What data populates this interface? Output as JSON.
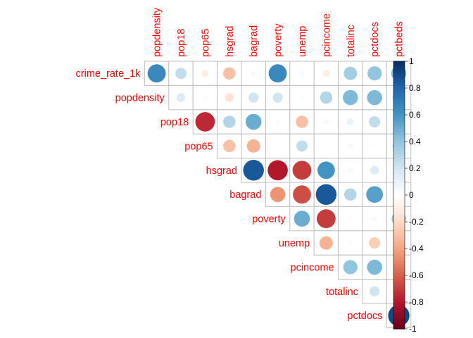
{
  "chart_data": {
    "type": "heatmap",
    "variables": [
      "crime_rate_1k",
      "popdensity",
      "pop18",
      "pop65",
      "hsgrad",
      "bagrad",
      "poverty",
      "unemp",
      "pcincome",
      "totalinc",
      "pctdocs",
      "pctbeds"
    ],
    "row_labels": [
      "crime_rate_1k",
      "popdensity",
      "pop18",
      "pop65",
      "hsgrad",
      "bagrad",
      "poverty",
      "unemp",
      "pcincome",
      "totalinc",
      "pctdocs"
    ],
    "col_labels": [
      "popdensity",
      "pop18",
      "pop65",
      "hsgrad",
      "bagrad",
      "poverty",
      "unemp",
      "pcincome",
      "totalinc",
      "pctdocs",
      "pctbeds"
    ],
    "matrix_shape": "upper-triangle",
    "glyph": "circle",
    "correlations": [
      {
        "row": "crime_rate_1k",
        "values": {
          "popdensity": 0.65,
          "pop18": 0.25,
          "pop65": -0.1,
          "hsgrad": -0.3,
          "bagrad": 0.05,
          "poverty": 0.65,
          "unemp": 0.05,
          "pcincome": -0.1,
          "totalinc": 0.35,
          "pctdocs": 0.4,
          "pctbeds": 0.45
        }
      },
      {
        "row": "popdensity",
        "values": {
          "pop18": 0.15,
          "pop65": -0.03,
          "hsgrad": -0.15,
          "bagrad": 0.2,
          "poverty": 0.2,
          "unemp": 0.03,
          "pcincome": 0.3,
          "totalinc": 0.45,
          "pctdocs": 0.45,
          "pctbeds": 0.3
        }
      },
      {
        "row": "pop18",
        "values": {
          "pop65": -0.75,
          "hsgrad": 0.3,
          "bagrad": 0.5,
          "poverty": 0.03,
          "unemp": -0.3,
          "pcincome": 0.05,
          "totalinc": 0.1,
          "pctdocs": 0.25,
          "pctbeds": 0.03
        }
      },
      {
        "row": "pop65",
        "values": {
          "hsgrad": -0.3,
          "bagrad": -0.35,
          "poverty": 0.0,
          "unemp": 0.25,
          "pcincome": 0.0,
          "totalinc": 0.05,
          "pctdocs": 0.02,
          "pctbeds": 0.3
        }
      },
      {
        "row": "hsgrad",
        "values": {
          "bagrad": 0.85,
          "poverty": -0.8,
          "unemp": -0.7,
          "pcincome": 0.6,
          "totalinc": 0.05,
          "pctdocs": 0.15,
          "pctbeds": -0.2
        }
      },
      {
        "row": "bagrad",
        "values": {
          "poverty": -0.45,
          "unemp": -0.65,
          "pcincome": 0.85,
          "totalinc": 0.3,
          "pctdocs": 0.55,
          "pctbeds": -0.05
        }
      },
      {
        "row": "poverty",
        "values": {
          "unemp": 0.5,
          "pcincome": -0.7,
          "totalinc": 0.03,
          "pctdocs": 0.05,
          "pctbeds": 0.4
        }
      },
      {
        "row": "unemp",
        "values": {
          "pcincome": -0.35,
          "totalinc": 0.03,
          "pctdocs": -0.25,
          "pctbeds": -0.08
        }
      },
      {
        "row": "pcincome",
        "values": {
          "totalinc": 0.4,
          "pctdocs": 0.45,
          "pctbeds": -0.07
        }
      },
      {
        "row": "totalinc",
        "values": {
          "pctdocs": 0.2,
          "pctbeds": 0.0
        }
      },
      {
        "row": "pctdocs",
        "values": {
          "pctbeds": 0.9
        }
      }
    ],
    "colorbar": {
      "range": [
        -1,
        1
      ],
      "ticks": [
        "-1",
        "-0.8",
        "-0.6",
        "-0.4",
        "-0.2",
        "0",
        "0.2",
        "0.4",
        "0.6",
        "0.8",
        "1"
      ],
      "stops": [
        "#67001f",
        "#b2182b",
        "#d6604d",
        "#f4a582",
        "#fddbc7",
        "#ffffff",
        "#d1e5f0",
        "#92c5de",
        "#4393c3",
        "#2166ac",
        "#053061"
      ]
    },
    "label_color": "#ff0000",
    "grid_color": "#bebebe"
  }
}
